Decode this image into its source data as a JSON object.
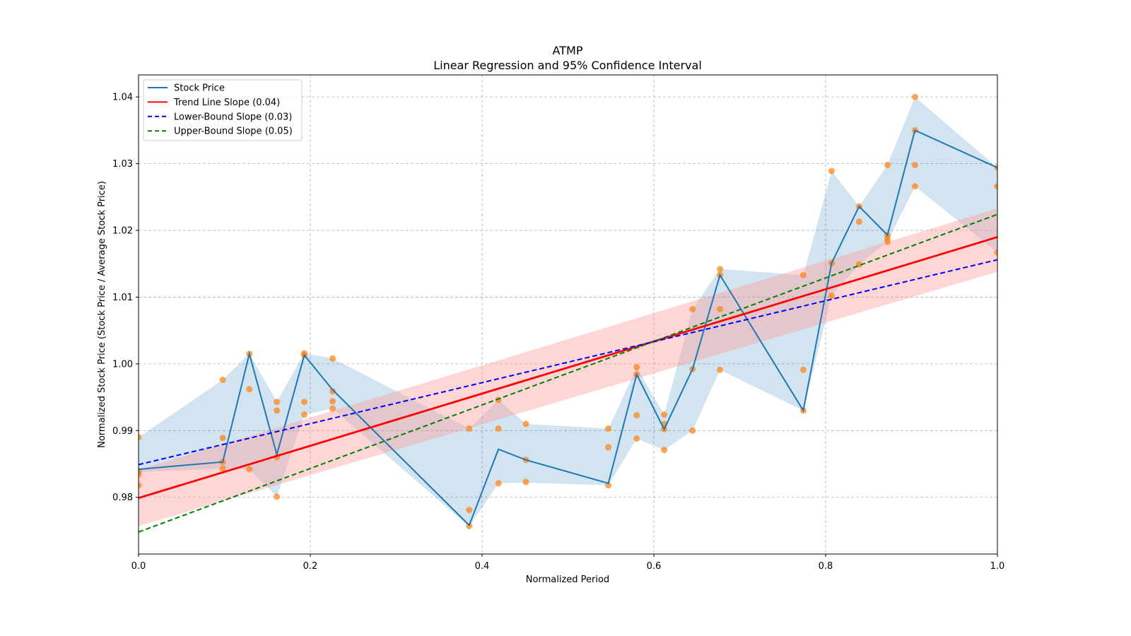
{
  "chart_data": {
    "type": "line",
    "title": "ATMP",
    "subtitle": "Linear Regression and 95% Confidence Interval",
    "xlabel": "Normalized Period",
    "ylabel": "Normalized Stock Price (Stock Price / Average Stock Price)",
    "xlim": [
      0.0,
      1.0
    ],
    "ylim": [
      0.9715,
      1.0433
    ],
    "xticks": [
      "0.0",
      "0.2",
      "0.4",
      "0.6",
      "0.8",
      "1.0"
    ],
    "xtick_values": [
      0.0,
      0.2,
      0.4,
      0.6,
      0.8,
      1.0
    ],
    "yticks": [
      "0.98",
      "0.99",
      "1.00",
      "1.01",
      "1.02",
      "1.03",
      "1.04"
    ],
    "ytick_values": [
      0.98,
      0.99,
      1.0,
      1.01,
      1.02,
      1.03,
      1.04
    ],
    "grid": true,
    "legend_position": "top-left",
    "colors": {
      "stock": "#1f77b4",
      "stock_band": "#1f77b4",
      "trend": "#ff0000",
      "trend_band": "#ff9999",
      "lower": "#0000ff",
      "upper": "#008000",
      "scatter": "#ff7f0e"
    },
    "legend": [
      {
        "label": "Stock Price",
        "style": "solid",
        "color": "#1f77b4"
      },
      {
        "label": "Trend Line Slope (0.04)",
        "style": "solid",
        "color": "#ff0000"
      },
      {
        "label": "Lower-Bound Slope (0.03)",
        "style": "dashed",
        "color": "#0000ff"
      },
      {
        "label": "Upper-Bound Slope (0.05)",
        "style": "dashed",
        "color": "#008000"
      }
    ],
    "stock_price": {
      "x": [
        0.0,
        0.098,
        0.129,
        0.161,
        0.193,
        0.226,
        0.385,
        0.419,
        0.451,
        0.547,
        0.58,
        0.612,
        0.645,
        0.677,
        0.774,
        0.807,
        0.839,
        0.872,
        0.904,
        1.0
      ],
      "y": [
        0.9842,
        0.9853,
        1.0015,
        0.9864,
        1.0013,
        0.9961,
        0.9758,
        0.9872,
        0.9856,
        0.9821,
        0.9984,
        0.9902,
        0.9992,
        1.0133,
        0.993,
        1.0151,
        1.0236,
        1.0193,
        1.035,
        1.0294
      ],
      "band_upper": [
        0.989,
        0.9976,
        1.0015,
        0.9943,
        1.0016,
        1.0008,
        0.9903,
        0.9946,
        0.991,
        0.9903,
        0.9994,
        0.9924,
        1.0082,
        1.0142,
        1.0133,
        1.0289,
        1.0236,
        1.0298,
        1.04,
        1.0294
      ],
      "band_lower": [
        0.9838,
        0.9843,
        0.9842,
        0.9801,
        0.9924,
        0.9933,
        0.9756,
        0.9821,
        0.9822,
        0.9818,
        0.9888,
        0.9871,
        0.99,
        0.9991,
        0.993,
        1.0102,
        1.0149,
        1.0183,
        1.0266,
        1.0167
      ]
    },
    "scatter_points": {
      "x": [
        0.0,
        0.0,
        0.0,
        0.0,
        0.098,
        0.098,
        0.098,
        0.098,
        0.129,
        0.129,
        0.129,
        0.161,
        0.161,
        0.161,
        0.161,
        0.193,
        0.193,
        0.193,
        0.193,
        0.226,
        0.226,
        0.226,
        0.226,
        0.385,
        0.385,
        0.385,
        0.419,
        0.419,
        0.419,
        0.451,
        0.451,
        0.451,
        0.547,
        0.547,
        0.547,
        0.58,
        0.58,
        0.58,
        0.58,
        0.612,
        0.612,
        0.612,
        0.612,
        0.645,
        0.645,
        0.645,
        0.677,
        0.677,
        0.677,
        0.677,
        0.774,
        0.774,
        0.774,
        0.807,
        0.807,
        0.807,
        0.839,
        0.839,
        0.839,
        0.872,
        0.872,
        0.872,
        0.872,
        0.904,
        0.904,
        0.904,
        0.904,
        1.0,
        1.0,
        1.0
      ],
      "y": [
        0.989,
        0.9838,
        0.9834,
        0.9818,
        0.9976,
        0.9889,
        0.9853,
        0.9843,
        1.0015,
        0.9962,
        0.9842,
        0.9943,
        0.993,
        0.986,
        0.9801,
        1.0016,
        1.0013,
        0.9943,
        0.9924,
        1.0008,
        0.9959,
        0.9944,
        0.9933,
        0.9903,
        0.9781,
        0.9757,
        0.9946,
        0.9903,
        0.9821,
        0.991,
        0.9856,
        0.9823,
        0.9903,
        0.9875,
        0.9818,
        0.9995,
        0.9984,
        0.9923,
        0.9888,
        0.9924,
        0.991,
        0.9902,
        0.9871,
        1.0082,
        0.9992,
        0.99,
        1.0142,
        1.0133,
        1.0082,
        0.9991,
        1.0133,
        0.9991,
        0.993,
        1.0289,
        1.0151,
        1.0102,
        1.0236,
        1.0213,
        1.0149,
        1.0298,
        1.0193,
        1.0188,
        1.0183,
        1.04,
        1.035,
        1.0298,
        1.0266,
        1.0294,
        1.0266,
        1.0167
      ]
    },
    "trend_line": {
      "x": [
        0.0,
        1.0
      ],
      "y": [
        0.9799,
        1.019
      ],
      "band_upper": [
        0.9841,
        1.0233
      ],
      "band_lower": [
        0.9757,
        1.0138
      ]
    },
    "lower_bound_line": {
      "x": [
        0.0,
        1.0
      ],
      "y": [
        0.9849,
        1.0156
      ]
    },
    "upper_bound_line": {
      "x": [
        0.0,
        1.0
      ],
      "y": [
        0.9748,
        1.0224
      ]
    }
  }
}
